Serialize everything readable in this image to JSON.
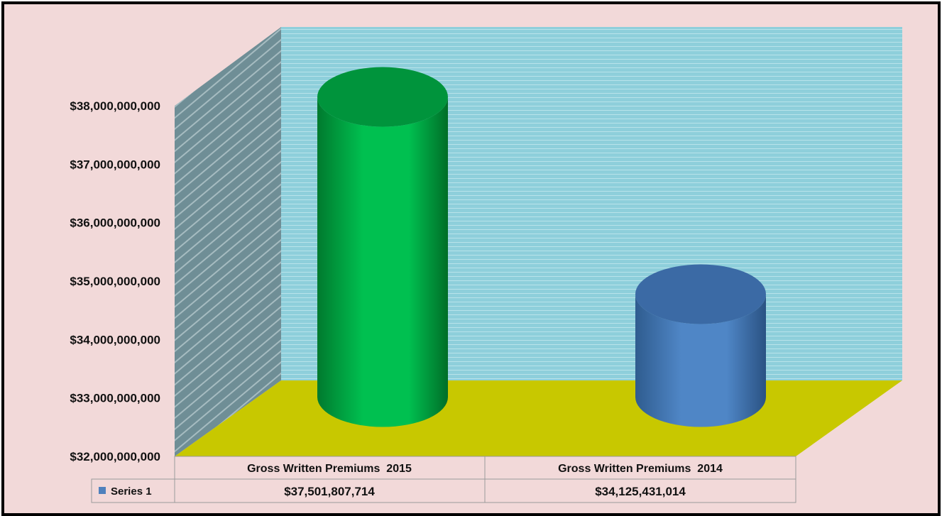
{
  "chart_data": {
    "type": "bar",
    "style": "3d-cylinder",
    "title": "",
    "xlabel": "",
    "ylabel": "",
    "categories": [
      "Gross Written Premiums  2015",
      "Gross Written Premiums  2014"
    ],
    "series": [
      {
        "name": "Series 1",
        "values": [
          37501807714,
          34125431014
        ],
        "value_labels": [
          "$37,501,807,714",
          "$34,125,431,014"
        ],
        "bar_colors": [
          "#00c050",
          "#4f81bd"
        ]
      }
    ],
    "ylim": [
      32000000000,
      38000000000
    ],
    "yticks": [
      "$32,000,000,000",
      "$33,000,000,000",
      "$34,000,000,000",
      "$35,000,000,000",
      "$36,000,000,000",
      "$37,000,000,000",
      "$38,000,000,000"
    ],
    "grid": true,
    "legend": "data-table",
    "colors": {
      "background": "#f2d9d9",
      "back_wall": "#8ecfdb",
      "side_wall": "#6f8e96",
      "floor": "#c8c800"
    }
  }
}
